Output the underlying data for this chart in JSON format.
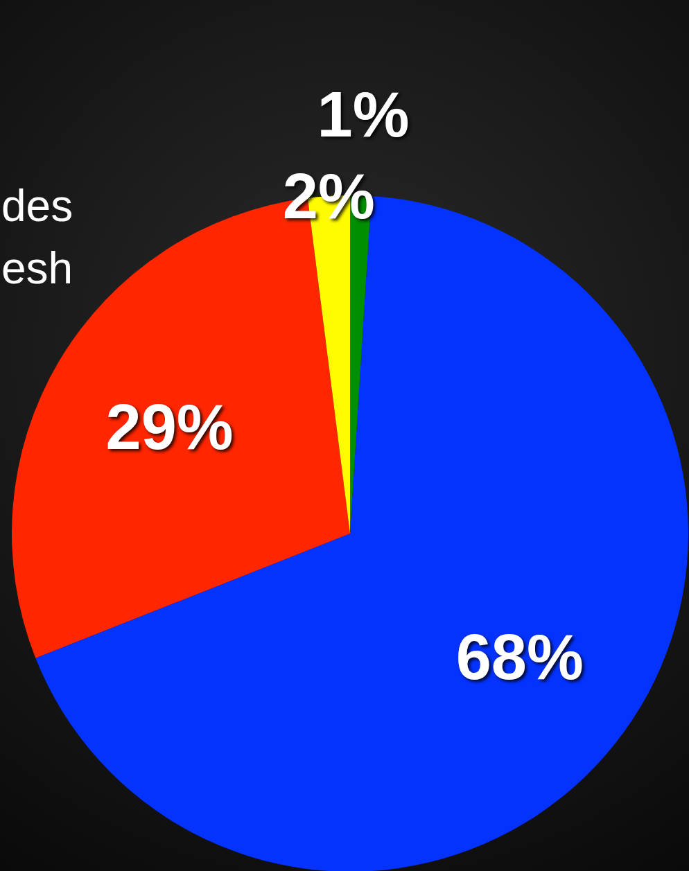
{
  "chart_data": {
    "type": "pie",
    "categories": [
      null,
      null,
      null,
      null
    ],
    "values": [
      68,
      29,
      2,
      1
    ],
    "colors": [
      "#0433ff",
      "#ff2600",
      "#fffb00",
      "#008f00"
    ],
    "value_labels": [
      "68%",
      "29%",
      "2%",
      "1%"
    ],
    "annotations": [
      "des",
      "esh"
    ]
  }
}
